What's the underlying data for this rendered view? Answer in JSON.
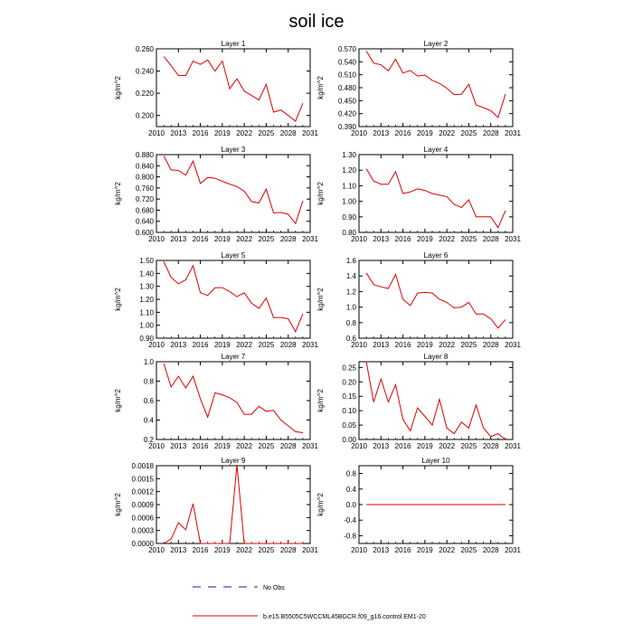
{
  "title": "soil ice",
  "legend": {
    "obs_label": "No Obs",
    "obs_color": "#1a1aa0",
    "model_label": "b.e15.B5505C5WCCML45BGCR.f09_g16.control.EM1-20",
    "model_color": "#e00000"
  },
  "chart_data": [
    {
      "type": "line",
      "title": "Layer 1",
      "ylabel": "kg/m^2",
      "xlim": [
        2010,
        2031
      ],
      "xticks": [
        2010,
        2013,
        2016,
        2019,
        2022,
        2025,
        2028,
        2031
      ],
      "ylim": [
        0.19,
        0.26
      ],
      "yticks": [
        "0.200",
        "0.220",
        "0.240",
        "0.260"
      ],
      "series": [
        {
          "x": [
            2011,
            2012,
            2013,
            2014,
            2015,
            2016,
            2017,
            2018,
            2019,
            2020,
            2021,
            2022,
            2023,
            2024,
            2025,
            2026,
            2027,
            2028,
            2029,
            2030
          ],
          "values": [
            0.253,
            0.245,
            0.236,
            0.236,
            0.249,
            0.246,
            0.25,
            0.24,
            0.249,
            0.224,
            0.233,
            0.222,
            0.218,
            0.214,
            0.228,
            0.203,
            0.205,
            0.2,
            0.195,
            0.211
          ]
        }
      ]
    },
    {
      "type": "line",
      "title": "Layer 2",
      "ylabel": "kg/m^2",
      "xlim": [
        2010,
        2031
      ],
      "xticks": [
        2010,
        2013,
        2016,
        2019,
        2022,
        2025,
        2028,
        2031
      ],
      "ylim": [
        0.39,
        0.57
      ],
      "yticks": [
        "0.390",
        "0.420",
        "0.450",
        "0.480",
        "0.510",
        "0.540",
        "0.570"
      ],
      "series": [
        {
          "x": [
            2011,
            2012,
            2013,
            2014,
            2015,
            2016,
            2017,
            2018,
            2019,
            2020,
            2021,
            2022,
            2023,
            2024,
            2025,
            2026,
            2027,
            2028,
            2029,
            2030
          ],
          "values": [
            0.565,
            0.537,
            0.533,
            0.519,
            0.546,
            0.514,
            0.52,
            0.507,
            0.509,
            0.497,
            0.49,
            0.479,
            0.464,
            0.465,
            0.488,
            0.44,
            0.434,
            0.427,
            0.411,
            0.465
          ]
        }
      ]
    },
    {
      "type": "line",
      "title": "Layer 3",
      "ylabel": "kg/m^2",
      "xlim": [
        2010,
        2031
      ],
      "xticks": [
        2010,
        2013,
        2016,
        2019,
        2022,
        2025,
        2028,
        2031
      ],
      "ylim": [
        0.6,
        0.88
      ],
      "yticks": [
        "0.600",
        "0.640",
        "0.680",
        "0.720",
        "0.760",
        "0.800",
        "0.840",
        "0.880"
      ],
      "series": [
        {
          "x": [
            2011,
            2012,
            2013,
            2014,
            2015,
            2016,
            2017,
            2018,
            2019,
            2020,
            2021,
            2022,
            2023,
            2024,
            2025,
            2026,
            2027,
            2028,
            2029,
            2030
          ],
          "values": [
            0.875,
            0.825,
            0.823,
            0.806,
            0.857,
            0.776,
            0.798,
            0.795,
            0.784,
            0.774,
            0.765,
            0.748,
            0.711,
            0.706,
            0.756,
            0.67,
            0.672,
            0.665,
            0.632,
            0.714
          ]
        }
      ]
    },
    {
      "type": "line",
      "title": "Layer 4",
      "ylabel": "kg/m^2",
      "xlim": [
        2010,
        2031
      ],
      "xticks": [
        2010,
        2013,
        2016,
        2019,
        2022,
        2025,
        2028,
        2031
      ],
      "ylim": [
        0.8,
        1.3
      ],
      "yticks": [
        "0.80",
        "0.90",
        "1.00",
        "1.10",
        "1.20",
        "1.30"
      ],
      "series": [
        {
          "x": [
            2011,
            2012,
            2013,
            2014,
            2015,
            2016,
            2017,
            2018,
            2019,
            2020,
            2021,
            2022,
            2023,
            2024,
            2025,
            2026,
            2027,
            2028,
            2029,
            2030
          ],
          "values": [
            1.21,
            1.13,
            1.11,
            1.11,
            1.19,
            1.05,
            1.06,
            1.08,
            1.07,
            1.05,
            1.04,
            1.03,
            0.98,
            0.96,
            1.01,
            0.9,
            0.9,
            0.9,
            0.83,
            0.94
          ]
        }
      ]
    },
    {
      "type": "line",
      "title": "Layer 5",
      "ylabel": "kg/m^2",
      "xlim": [
        2010,
        2031
      ],
      "xticks": [
        2010,
        2013,
        2016,
        2019,
        2022,
        2025,
        2028,
        2031
      ],
      "ylim": [
        0.9,
        1.5
      ],
      "yticks": [
        "0.90",
        "1.00",
        "1.10",
        "1.20",
        "1.30",
        "1.40",
        "1.50"
      ],
      "series": [
        {
          "x": [
            2011,
            2012,
            2013,
            2014,
            2015,
            2016,
            2017,
            2018,
            2019,
            2020,
            2021,
            2022,
            2023,
            2024,
            2025,
            2026,
            2027,
            2028,
            2029,
            2030
          ],
          "values": [
            1.49,
            1.37,
            1.32,
            1.35,
            1.46,
            1.25,
            1.23,
            1.29,
            1.29,
            1.26,
            1.22,
            1.25,
            1.17,
            1.13,
            1.21,
            1.06,
            1.06,
            1.05,
            0.95,
            1.09
          ]
        }
      ]
    },
    {
      "type": "line",
      "title": "Layer 6",
      "ylabel": "kg/m^2",
      "xlim": [
        2010,
        2031
      ],
      "xticks": [
        2010,
        2013,
        2016,
        2019,
        2022,
        2025,
        2028,
        2031
      ],
      "ylim": [
        0.6,
        1.6
      ],
      "yticks": [
        "0.6",
        "0.8",
        "1.0",
        "1.2",
        "1.4",
        "1.6"
      ],
      "series": [
        {
          "x": [
            2011,
            2012,
            2013,
            2014,
            2015,
            2016,
            2017,
            2018,
            2019,
            2020,
            2021,
            2022,
            2023,
            2024,
            2025,
            2026,
            2027,
            2028,
            2029,
            2030
          ],
          "values": [
            1.44,
            1.29,
            1.26,
            1.24,
            1.42,
            1.1,
            1.02,
            1.18,
            1.19,
            1.18,
            1.1,
            1.06,
            0.99,
            1.0,
            1.06,
            0.91,
            0.91,
            0.85,
            0.73,
            0.84
          ]
        }
      ]
    },
    {
      "type": "line",
      "title": "Layer 7",
      "ylabel": "kg/m^2",
      "xlim": [
        2010,
        2031
      ],
      "xticks": [
        2010,
        2013,
        2016,
        2019,
        2022,
        2025,
        2028,
        2031
      ],
      "ylim": [
        0.2,
        1.0
      ],
      "yticks": [
        "0.2",
        "0.4",
        "0.6",
        "0.8",
        "1.0"
      ],
      "series": [
        {
          "x": [
            2011,
            2012,
            2013,
            2014,
            2015,
            2016,
            2017,
            2018,
            2019,
            2020,
            2021,
            2022,
            2023,
            2024,
            2025,
            2026,
            2027,
            2028,
            2029,
            2030
          ],
          "values": [
            0.98,
            0.74,
            0.85,
            0.73,
            0.85,
            0.62,
            0.43,
            0.68,
            0.66,
            0.63,
            0.58,
            0.46,
            0.46,
            0.54,
            0.49,
            0.5,
            0.4,
            0.34,
            0.28,
            0.27
          ]
        }
      ]
    },
    {
      "type": "line",
      "title": "Layer 8",
      "ylabel": "kg/m^2",
      "xlim": [
        2010,
        2031
      ],
      "xticks": [
        2010,
        2013,
        2016,
        2019,
        2022,
        2025,
        2028,
        2031
      ],
      "ylim": [
        0.0,
        0.27
      ],
      "yticks": [
        "0.00",
        "0.05",
        "0.10",
        "0.15",
        "0.20",
        "0.25"
      ],
      "series": [
        {
          "x": [
            2011,
            2012,
            2013,
            2014,
            2015,
            2016,
            2017,
            2018,
            2019,
            2020,
            2021,
            2022,
            2023,
            2024,
            2025,
            2026,
            2027,
            2028,
            2029,
            2030
          ],
          "values": [
            0.27,
            0.13,
            0.21,
            0.13,
            0.19,
            0.07,
            0.03,
            0.11,
            0.08,
            0.05,
            0.14,
            0.04,
            0.02,
            0.06,
            0.04,
            0.12,
            0.04,
            0.01,
            0.02,
            0.0
          ]
        }
      ]
    },
    {
      "type": "line",
      "title": "Layer 9",
      "ylabel": "kg/m^2",
      "xlim": [
        2010,
        2031
      ],
      "xticks": [
        2010,
        2013,
        2016,
        2019,
        2022,
        2025,
        2028,
        2031
      ],
      "ylim": [
        0.0,
        0.0018
      ],
      "yticks": [
        "0.0000",
        "0.0003",
        "0.0006",
        "0.0009",
        "0.0012",
        "0.0015",
        "0.0018"
      ],
      "series": [
        {
          "x": [
            2011,
            2012,
            2013,
            2014,
            2015,
            2016,
            2017,
            2018,
            2019,
            2020,
            2021,
            2022,
            2023,
            2024,
            2025,
            2026,
            2027,
            2028,
            2029,
            2030
          ],
          "values": [
            0.0,
            0.0001,
            0.00048,
            0.00032,
            0.00092,
            0.0,
            0.0,
            0.0,
            0.0,
            0.0,
            0.00182,
            0.0,
            0.0,
            0.0,
            0.0,
            0.0,
            0.0,
            0.0,
            0.0,
            0.0
          ]
        }
      ]
    },
    {
      "type": "line",
      "title": "Layer 10",
      "ylabel": "kg/m^2",
      "xlim": [
        2010,
        2031
      ],
      "xticks": [
        2010,
        2013,
        2016,
        2019,
        2022,
        2025,
        2028,
        2031
      ],
      "ylim": [
        -1.0,
        1.0
      ],
      "yticks": [
        "-0.8",
        "-0.4",
        "0.0",
        "0.4",
        "0.8"
      ],
      "series": [
        {
          "x": [
            2011,
            2012,
            2013,
            2014,
            2015,
            2016,
            2017,
            2018,
            2019,
            2020,
            2021,
            2022,
            2023,
            2024,
            2025,
            2026,
            2027,
            2028,
            2029,
            2030
          ],
          "values": [
            0,
            0,
            0,
            0,
            0,
            0,
            0,
            0,
            0,
            0,
            0,
            0,
            0,
            0,
            0,
            0,
            0,
            0,
            0,
            0
          ]
        }
      ]
    }
  ]
}
